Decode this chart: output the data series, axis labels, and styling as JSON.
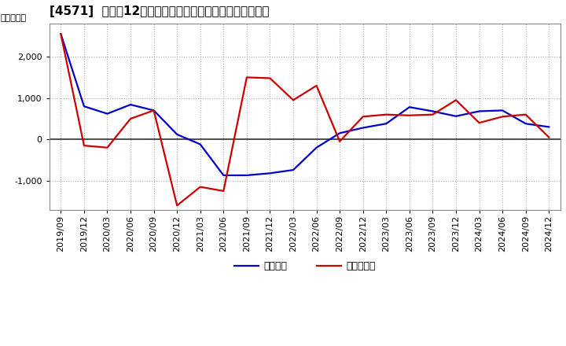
{
  "title": "[4571]  利益の12か月移動合計の対前年同期増減額の推移",
  "ylabel": "（百万円）",
  "legend_blue": "経常利益",
  "legend_red": "当期純利益",
  "x_labels": [
    "2019/09",
    "2019/12",
    "2020/03",
    "2020/06",
    "2020/09",
    "2020/12",
    "2021/03",
    "2021/06",
    "2021/09",
    "2021/12",
    "2022/03",
    "2022/06",
    "2022/09",
    "2022/12",
    "2023/03",
    "2023/06",
    "2023/09",
    "2023/12",
    "2024/03",
    "2024/06",
    "2024/09",
    "2024/12"
  ],
  "blue_values": [
    2550,
    800,
    620,
    840,
    700,
    120,
    -120,
    -870,
    -870,
    -820,
    -740,
    -200,
    150,
    280,
    380,
    780,
    680,
    560,
    680,
    700,
    380,
    300
  ],
  "red_values": [
    2550,
    -150,
    -200,
    500,
    700,
    -1600,
    -1150,
    -1250,
    1500,
    1480,
    950,
    1300,
    -50,
    550,
    600,
    580,
    600,
    950,
    400,
    550,
    600,
    50
  ],
  "ylim": [
    -1700,
    2800
  ],
  "yticks": [
    -1000,
    0,
    1000,
    2000
  ],
  "blue_color": "#0000cc",
  "red_color": "#cc0000",
  "bg_color": "#ffffff",
  "grid_color": "#aaaaaa",
  "zero_line_color": "#333333",
  "title_fontsize": 11,
  "axis_fontsize": 8,
  "legend_fontsize": 9
}
